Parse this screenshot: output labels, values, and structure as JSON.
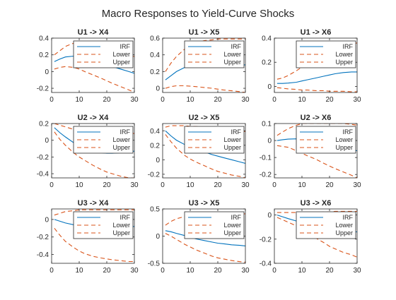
{
  "figure": {
    "title": "Macro Responses to Yield-Curve Shocks"
  },
  "legend": {
    "labels": [
      "IRF",
      "Lower",
      "Upper"
    ],
    "placement": "top-right"
  },
  "colors": {
    "irf": "#0072BD",
    "band": "#D95319",
    "axes": "#262626",
    "background": "#ffffff"
  },
  "chart_data": [
    {
      "type": "line",
      "title": "U1 -> X4",
      "xlim": [
        0,
        30
      ],
      "ylim": [
        -0.25,
        0.4
      ],
      "xticks": [
        0,
        10,
        20,
        30
      ],
      "yticks": [
        -0.2,
        0,
        0.2,
        0.4
      ],
      "yticklabels": [
        "-0.2",
        "0",
        "0.2",
        "0.4"
      ],
      "x": [
        1,
        3,
        5,
        8,
        10,
        12,
        15,
        18,
        20,
        22,
        25,
        28,
        30
      ],
      "series": [
        {
          "name": "IRF",
          "values": [
            0.12,
            0.15,
            0.175,
            0.185,
            0.18,
            0.17,
            0.15,
            0.12,
            0.09,
            0.06,
            0.03,
            0.0,
            -0.02
          ]
        },
        {
          "name": "Lower",
          "values": [
            0.2,
            0.25,
            0.3,
            0.34,
            0.355,
            0.355,
            0.34,
            0.31,
            0.28,
            0.25,
            0.21,
            0.19,
            0.18
          ]
        },
        {
          "name": "Upper",
          "values": [
            0.03,
            0.05,
            0.06,
            0.05,
            0.03,
            0.0,
            -0.04,
            -0.08,
            -0.11,
            -0.14,
            -0.18,
            -0.22,
            -0.25
          ]
        }
      ]
    },
    {
      "type": "line",
      "title": "U1 -> X5",
      "xlim": [
        0,
        30
      ],
      "ylim": [
        -0.05,
        0.6
      ],
      "xticks": [
        0,
        10,
        20,
        30
      ],
      "yticks": [
        0,
        0.2,
        0.4,
        0.6
      ],
      "yticklabels": [
        "0",
        "0.2",
        "0.4",
        "0.6"
      ],
      "x": [
        1,
        3,
        5,
        8,
        10,
        12,
        15,
        18,
        20,
        22,
        25,
        28,
        30
      ],
      "series": [
        {
          "name": "IRF",
          "values": [
            0.1,
            0.15,
            0.2,
            0.25,
            0.27,
            0.28,
            0.29,
            0.29,
            0.29,
            0.29,
            0.28,
            0.28,
            0.28
          ]
        },
        {
          "name": "Lower",
          "values": [
            0.2,
            0.3,
            0.38,
            0.47,
            0.51,
            0.54,
            0.57,
            0.58,
            0.59,
            0.59,
            0.59,
            0.59,
            0.59
          ]
        },
        {
          "name": "Upper",
          "values": [
            0.0,
            0.02,
            0.03,
            0.03,
            0.025,
            0.02,
            0.01,
            0.0,
            -0.01,
            -0.02,
            -0.03,
            -0.04,
            -0.05
          ]
        }
      ]
    },
    {
      "type": "line",
      "title": "U1 -> X6",
      "xlim": [
        0,
        30
      ],
      "ylim": [
        -0.05,
        0.4
      ],
      "xticks": [
        0,
        10,
        20,
        30
      ],
      "yticks": [
        0,
        0.2,
        0.4
      ],
      "yticklabels": [
        "0",
        "0.2",
        "0.4"
      ],
      "x": [
        1,
        3,
        5,
        8,
        10,
        12,
        15,
        18,
        20,
        22,
        25,
        28,
        30
      ],
      "series": [
        {
          "name": "IRF",
          "values": [
            0.025,
            0.025,
            0.028,
            0.035,
            0.045,
            0.055,
            0.07,
            0.085,
            0.095,
            0.105,
            0.115,
            0.12,
            0.12
          ]
        },
        {
          "name": "Lower",
          "values": [
            0.06,
            0.07,
            0.09,
            0.13,
            0.16,
            0.19,
            0.23,
            0.27,
            0.29,
            0.31,
            0.33,
            0.35,
            0.36
          ]
        },
        {
          "name": "Upper",
          "values": [
            -0.01,
            -0.015,
            -0.02,
            -0.025,
            -0.03,
            -0.03,
            -0.035,
            -0.035,
            -0.04,
            -0.04,
            -0.04,
            -0.045,
            -0.045
          ]
        }
      ]
    },
    {
      "type": "line",
      "title": "U2 -> X4",
      "xlim": [
        0,
        30
      ],
      "ylim": [
        -0.45,
        0.2
      ],
      "xticks": [
        0,
        10,
        20,
        30
      ],
      "yticks": [
        -0.4,
        -0.2,
        0,
        0.2
      ],
      "yticklabels": [
        "-0.4",
        "-0.2",
        "0",
        "0.2"
      ],
      "x": [
        1,
        3,
        5,
        8,
        10,
        12,
        15,
        18,
        20,
        22,
        25,
        28,
        30
      ],
      "series": [
        {
          "name": "IRF",
          "values": [
            0.15,
            0.09,
            0.04,
            -0.03,
            -0.07,
            -0.1,
            -0.13,
            -0.15,
            -0.155,
            -0.155,
            -0.15,
            -0.14,
            -0.13
          ]
        },
        {
          "name": "Lower",
          "values": [
            0.2,
            0.18,
            0.16,
            0.13,
            0.12,
            0.11,
            0.1,
            0.1,
            0.1,
            0.1,
            0.1,
            0.09,
            0.08
          ]
        },
        {
          "name": "Upper",
          "values": [
            0.1,
            0.01,
            -0.06,
            -0.15,
            -0.2,
            -0.24,
            -0.3,
            -0.35,
            -0.38,
            -0.4,
            -0.43,
            -0.45,
            -0.45
          ]
        }
      ]
    },
    {
      "type": "line",
      "title": "U2 -> X5",
      "xlim": [
        0,
        30
      ],
      "ylim": [
        -0.25,
        0.5
      ],
      "xticks": [
        0,
        10,
        20,
        30
      ],
      "yticks": [
        -0.2,
        0,
        0.2,
        0.4
      ],
      "yticklabels": [
        "-0.2",
        "0",
        "0.2",
        "0.4"
      ],
      "x": [
        1,
        3,
        5,
        8,
        10,
        12,
        15,
        18,
        20,
        22,
        25,
        28,
        30
      ],
      "series": [
        {
          "name": "IRF",
          "values": [
            0.4,
            0.33,
            0.27,
            0.21,
            0.18,
            0.15,
            0.11,
            0.07,
            0.05,
            0.03,
            0.0,
            -0.03,
            -0.05
          ]
        },
        {
          "name": "Lower",
          "values": [
            0.45,
            0.47,
            0.47,
            0.47,
            0.46,
            0.46,
            0.45,
            0.44,
            0.43,
            0.42,
            0.41,
            0.4,
            0.39
          ]
        },
        {
          "name": "Upper",
          "values": [
            0.35,
            0.25,
            0.16,
            0.06,
            0.01,
            -0.03,
            -0.08,
            -0.13,
            -0.16,
            -0.18,
            -0.21,
            -0.23,
            -0.25
          ]
        }
      ]
    },
    {
      "type": "line",
      "title": "U2 -> X6",
      "xlim": [
        0,
        30
      ],
      "ylim": [
        -0.22,
        0.1
      ],
      "xticks": [
        0,
        10,
        20,
        30
      ],
      "yticks": [
        -0.2,
        -0.1,
        0,
        0.1
      ],
      "yticklabels": [
        "-0.2",
        "-0.1",
        "0",
        "0.1"
      ],
      "x": [
        1,
        3,
        5,
        8,
        10,
        12,
        15,
        18,
        20,
        22,
        25,
        28,
        30
      ],
      "series": [
        {
          "name": "IRF",
          "values": [
            0.0,
            0.005,
            0.008,
            0.01,
            0.008,
            0.005,
            -0.005,
            -0.015,
            -0.025,
            -0.035,
            -0.045,
            -0.055,
            -0.06
          ]
        },
        {
          "name": "Lower",
          "values": [
            0.03,
            0.05,
            0.07,
            0.09,
            0.1,
            0.1,
            0.1,
            0.1,
            0.1,
            0.1,
            0.1,
            0.095,
            0.09
          ]
        },
        {
          "name": "Upper",
          "values": [
            -0.03,
            -0.035,
            -0.04,
            -0.06,
            -0.075,
            -0.09,
            -0.11,
            -0.135,
            -0.15,
            -0.165,
            -0.185,
            -0.205,
            -0.22
          ]
        }
      ]
    },
    {
      "type": "line",
      "title": "U3 -> X4",
      "xlim": [
        0,
        30
      ],
      "ylim": [
        -0.5,
        0.12
      ],
      "xticks": [
        0,
        10,
        20,
        30
      ],
      "yticks": [
        -0.4,
        -0.2,
        0
      ],
      "yticklabels": [
        "-0.4",
        "-0.2",
        "0"
      ],
      "x": [
        1,
        3,
        5,
        8,
        10,
        12,
        15,
        18,
        20,
        22,
        25,
        28,
        30
      ],
      "series": [
        {
          "name": "IRF",
          "values": [
            0.0,
            -0.02,
            -0.04,
            -0.06,
            -0.07,
            -0.08,
            -0.085,
            -0.09,
            -0.09,
            -0.09,
            -0.09,
            -0.085,
            -0.08
          ]
        },
        {
          "name": "Lower",
          "values": [
            0.05,
            0.07,
            0.09,
            0.1,
            0.11,
            0.11,
            0.11,
            0.11,
            0.11,
            0.11,
            0.11,
            0.11,
            0.11
          ]
        },
        {
          "name": "Upper",
          "values": [
            -0.1,
            -0.18,
            -0.25,
            -0.32,
            -0.36,
            -0.39,
            -0.42,
            -0.44,
            -0.45,
            -0.46,
            -0.47,
            -0.48,
            -0.48
          ]
        }
      ]
    },
    {
      "type": "line",
      "title": "U3 -> X5",
      "xlim": [
        0,
        30
      ],
      "ylim": [
        -0.5,
        0.5
      ],
      "xticks": [
        0,
        10,
        20,
        30
      ],
      "yticks": [
        -0.5,
        0,
        0.5
      ],
      "yticklabels": [
        "-0.5",
        "0",
        "0.5"
      ],
      "x": [
        1,
        3,
        5,
        8,
        10,
        12,
        15,
        18,
        20,
        22,
        25,
        28,
        30
      ],
      "series": [
        {
          "name": "IRF",
          "values": [
            0.1,
            0.08,
            0.05,
            0.01,
            -0.02,
            -0.05,
            -0.08,
            -0.11,
            -0.13,
            -0.14,
            -0.16,
            -0.17,
            -0.18
          ]
        },
        {
          "name": "Lower",
          "values": [
            0.2,
            0.27,
            0.32,
            0.36,
            0.38,
            0.39,
            0.4,
            0.41,
            0.41,
            0.41,
            0.41,
            0.41,
            0.41
          ]
        },
        {
          "name": "Upper",
          "values": [
            0.05,
            0.0,
            -0.06,
            -0.15,
            -0.2,
            -0.25,
            -0.31,
            -0.37,
            -0.4,
            -0.42,
            -0.45,
            -0.47,
            -0.48
          ]
        }
      ]
    },
    {
      "type": "line",
      "title": "U3 -> X6",
      "xlim": [
        0,
        30
      ],
      "ylim": [
        -0.4,
        0.05
      ],
      "xticks": [
        0,
        10,
        20,
        30
      ],
      "yticks": [
        -0.4,
        -0.2,
        0
      ],
      "yticklabels": [
        "-0.4",
        "-0.2",
        "0"
      ],
      "x": [
        1,
        3,
        5,
        8,
        10,
        12,
        15,
        18,
        20,
        22,
        25,
        28,
        30
      ],
      "series": [
        {
          "name": "IRF",
          "values": [
            0.0,
            -0.015,
            -0.03,
            -0.05,
            -0.065,
            -0.08,
            -0.1,
            -0.115,
            -0.12,
            -0.125,
            -0.13,
            -0.135,
            -0.14
          ]
        },
        {
          "name": "Lower",
          "values": [
            0.02,
            0.02,
            0.02,
            0.02,
            0.02,
            0.02,
            0.02,
            0.025,
            0.025,
            0.03,
            0.03,
            0.03,
            0.03
          ]
        },
        {
          "name": "Upper",
          "values": [
            -0.02,
            -0.04,
            -0.06,
            -0.09,
            -0.12,
            -0.15,
            -0.19,
            -0.23,
            -0.26,
            -0.28,
            -0.31,
            -0.33,
            -0.35
          ]
        }
      ]
    }
  ]
}
